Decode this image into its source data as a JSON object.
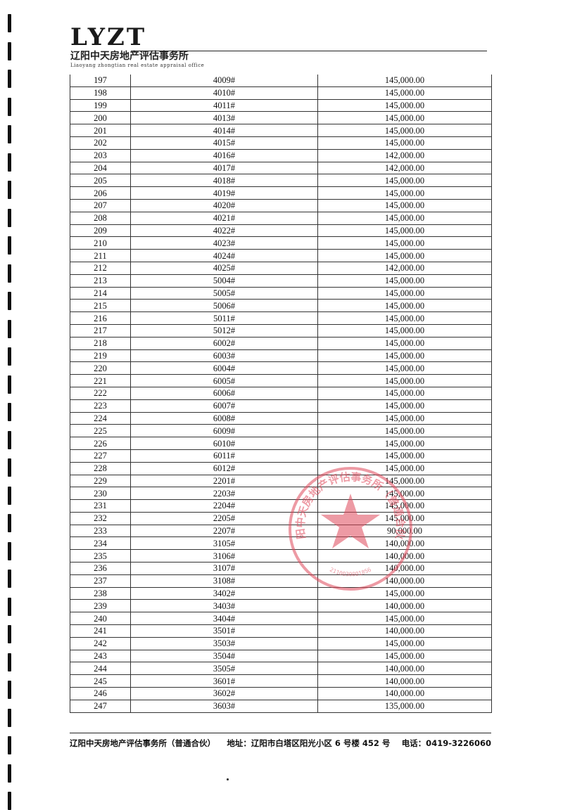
{
  "header": {
    "logo_main": "LYZT",
    "logo_cn": "辽阳中天房地产评估事务所",
    "logo_en": "Liaoyang zhongtian real estate appraisal office"
  },
  "rows": [
    [
      "197",
      "4009#",
      "145,000.00"
    ],
    [
      "198",
      "4010#",
      "145,000.00"
    ],
    [
      "199",
      "4011#",
      "145,000.00"
    ],
    [
      "200",
      "4013#",
      "145,000.00"
    ],
    [
      "201",
      "4014#",
      "145,000.00"
    ],
    [
      "202",
      "4015#",
      "145,000.00"
    ],
    [
      "203",
      "4016#",
      "142,000.00"
    ],
    [
      "204",
      "4017#",
      "142,000.00"
    ],
    [
      "205",
      "4018#",
      "145,000.00"
    ],
    [
      "206",
      "4019#",
      "145,000.00"
    ],
    [
      "207",
      "4020#",
      "145,000.00"
    ],
    [
      "208",
      "4021#",
      "145,000.00"
    ],
    [
      "209",
      "4022#",
      "145,000.00"
    ],
    [
      "210",
      "4023#",
      "145,000.00"
    ],
    [
      "211",
      "4024#",
      "145,000.00"
    ],
    [
      "212",
      "4025#",
      "142,000.00"
    ],
    [
      "213",
      "5004#",
      "145,000.00"
    ],
    [
      "214",
      "5005#",
      "145,000.00"
    ],
    [
      "215",
      "5006#",
      "145,000.00"
    ],
    [
      "216",
      "5011#",
      "145,000.00"
    ],
    [
      "217",
      "5012#",
      "145,000.00"
    ],
    [
      "218",
      "6002#",
      "145,000.00"
    ],
    [
      "219",
      "6003#",
      "145,000.00"
    ],
    [
      "220",
      "6004#",
      "145,000.00"
    ],
    [
      "221",
      "6005#",
      "145,000.00"
    ],
    [
      "222",
      "6006#",
      "145,000.00"
    ],
    [
      "223",
      "6007#",
      "145,000.00"
    ],
    [
      "224",
      "6008#",
      "145,000.00"
    ],
    [
      "225",
      "6009#",
      "145,000.00"
    ],
    [
      "226",
      "6010#",
      "145,000.00"
    ],
    [
      "227",
      "6011#",
      "145,000.00"
    ],
    [
      "228",
      "6012#",
      "145,000.00"
    ],
    [
      "229",
      "2201#",
      "145,000.00"
    ],
    [
      "230",
      "2203#",
      "145,000.00"
    ],
    [
      "231",
      "2204#",
      "145,000.00"
    ],
    [
      "232",
      "2205#",
      "145,000.00"
    ],
    [
      "233",
      "2207#",
      "90,000.00"
    ],
    [
      "234",
      "3105#",
      "140,000.00"
    ],
    [
      "235",
      "3106#",
      "140,000.00"
    ],
    [
      "236",
      "3107#",
      "140,000.00"
    ],
    [
      "237",
      "3108#",
      "140,000.00"
    ],
    [
      "238",
      "3402#",
      "145,000.00"
    ],
    [
      "239",
      "3403#",
      "140,000.00"
    ],
    [
      "240",
      "3404#",
      "145,000.00"
    ],
    [
      "241",
      "3501#",
      "140,000.00"
    ],
    [
      "242",
      "3503#",
      "145,000.00"
    ],
    [
      "243",
      "3504#",
      "145,000.00"
    ],
    [
      "244",
      "3505#",
      "140,000.00"
    ],
    [
      "245",
      "3601#",
      "140,000.00"
    ],
    [
      "246",
      "3602#",
      "140,000.00"
    ],
    [
      "247",
      "3603#",
      "135,000.00"
    ]
  ],
  "stamp": {
    "arc_text": "辽阳中天房地产评估事务所（普通合伙）",
    "serial": "2110030001856",
    "color": "#e0485a"
  },
  "footer": {
    "company": "辽阳中天房地产评估事务所（普通合伙）",
    "address": "地址：辽阳市白塔区阳光小区 6 号楼 452 号",
    "phone": "电话：0419-3226060"
  }
}
